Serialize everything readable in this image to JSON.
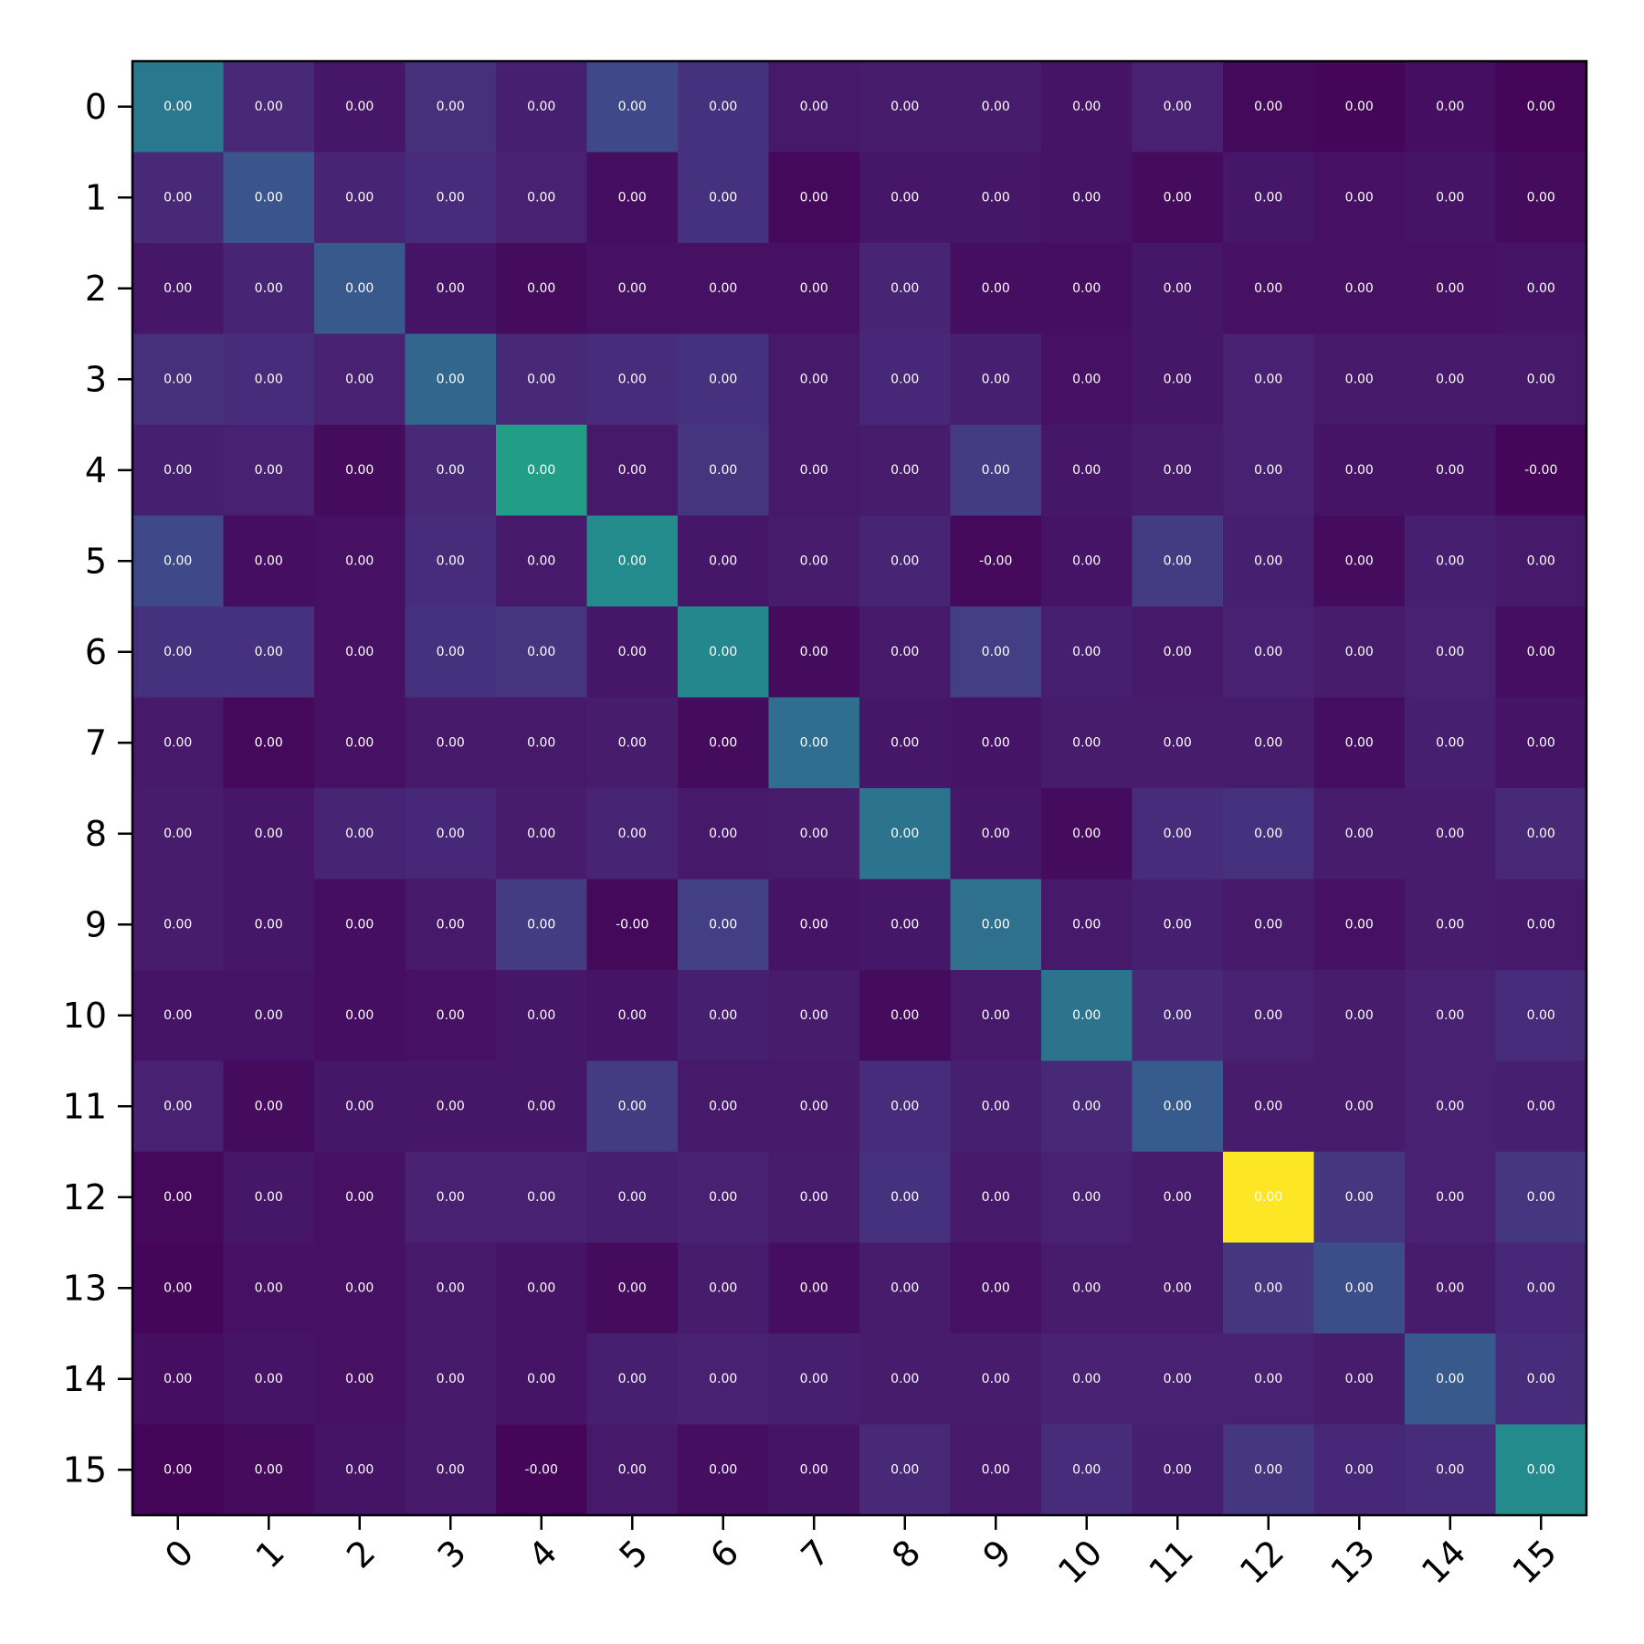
{
  "chart_data": {
    "type": "heatmap",
    "title": "",
    "xlabel": "",
    "ylabel": "",
    "x_ticks": [
      "0",
      "1",
      "2",
      "3",
      "4",
      "5",
      "6",
      "7",
      "8",
      "9",
      "10",
      "11",
      "12",
      "13",
      "14",
      "15"
    ],
    "y_ticks": [
      "0",
      "1",
      "2",
      "3",
      "4",
      "5",
      "6",
      "7",
      "8",
      "9",
      "10",
      "11",
      "12",
      "13",
      "14",
      "15"
    ],
    "colormap": "viridis",
    "color_intensity": [
      [
        0.5,
        0.15,
        0.08,
        0.17,
        0.11,
        0.27,
        0.18,
        0.09,
        0.1,
        0.1,
        0.07,
        0.12,
        0.03,
        0.02,
        0.05,
        0.01
      ],
      [
        0.15,
        0.33,
        0.13,
        0.16,
        0.12,
        0.05,
        0.18,
        0.03,
        0.08,
        0.08,
        0.07,
        0.04,
        0.08,
        0.06,
        0.07,
        0.04
      ],
      [
        0.08,
        0.13,
        0.35,
        0.07,
        0.04,
        0.06,
        0.06,
        0.06,
        0.13,
        0.05,
        0.05,
        0.08,
        0.06,
        0.06,
        0.06,
        0.07
      ],
      [
        0.17,
        0.16,
        0.12,
        0.42,
        0.15,
        0.16,
        0.18,
        0.09,
        0.14,
        0.11,
        0.06,
        0.08,
        0.12,
        0.09,
        0.09,
        0.09
      ],
      [
        0.11,
        0.12,
        0.04,
        0.15,
        0.7,
        0.09,
        0.19,
        0.09,
        0.1,
        0.22,
        0.08,
        0.1,
        0.12,
        0.07,
        0.07,
        0.02
      ],
      [
        0.27,
        0.05,
        0.06,
        0.16,
        0.09,
        0.6,
        0.08,
        0.1,
        0.13,
        0.03,
        0.07,
        0.22,
        0.11,
        0.04,
        0.11,
        0.09
      ],
      [
        0.18,
        0.18,
        0.06,
        0.18,
        0.19,
        0.08,
        0.58,
        0.04,
        0.09,
        0.23,
        0.11,
        0.09,
        0.12,
        0.1,
        0.12,
        0.05
      ],
      [
        0.09,
        0.03,
        0.06,
        0.09,
        0.09,
        0.1,
        0.04,
        0.45,
        0.08,
        0.07,
        0.1,
        0.1,
        0.1,
        0.05,
        0.11,
        0.07
      ],
      [
        0.1,
        0.08,
        0.13,
        0.14,
        0.1,
        0.13,
        0.09,
        0.1,
        0.48,
        0.08,
        0.04,
        0.16,
        0.18,
        0.1,
        0.1,
        0.15
      ],
      [
        0.1,
        0.08,
        0.05,
        0.09,
        0.22,
        0.03,
        0.23,
        0.07,
        0.08,
        0.46,
        0.09,
        0.11,
        0.09,
        0.06,
        0.1,
        0.09
      ],
      [
        0.07,
        0.07,
        0.05,
        0.06,
        0.08,
        0.07,
        0.11,
        0.1,
        0.04,
        0.09,
        0.48,
        0.15,
        0.12,
        0.1,
        0.12,
        0.16
      ],
      [
        0.12,
        0.04,
        0.08,
        0.08,
        0.08,
        0.22,
        0.09,
        0.09,
        0.16,
        0.11,
        0.15,
        0.36,
        0.1,
        0.1,
        0.12,
        0.11
      ],
      [
        0.03,
        0.08,
        0.06,
        0.12,
        0.12,
        0.11,
        0.12,
        0.1,
        0.18,
        0.09,
        0.12,
        0.1,
        1.0,
        0.2,
        0.12,
        0.2
      ],
      [
        0.02,
        0.06,
        0.06,
        0.09,
        0.07,
        0.04,
        0.1,
        0.05,
        0.1,
        0.06,
        0.1,
        0.1,
        0.2,
        0.3,
        0.1,
        0.14
      ],
      [
        0.05,
        0.07,
        0.06,
        0.09,
        0.07,
        0.11,
        0.12,
        0.11,
        0.1,
        0.1,
        0.12,
        0.12,
        0.12,
        0.1,
        0.35,
        0.16
      ],
      [
        0.01,
        0.04,
        0.07,
        0.09,
        0.02,
        0.09,
        0.05,
        0.07,
        0.15,
        0.09,
        0.16,
        0.11,
        0.2,
        0.14,
        0.16,
        0.6
      ]
    ],
    "cell_labels": [
      [
        "0.00",
        "0.00",
        "0.00",
        "0.00",
        "0.00",
        "0.00",
        "0.00",
        "0.00",
        "0.00",
        "0.00",
        "0.00",
        "0.00",
        "0.00",
        "0.00",
        "0.00",
        "0.00"
      ],
      [
        "0.00",
        "0.00",
        "0.00",
        "0.00",
        "0.00",
        "0.00",
        "0.00",
        "0.00",
        "0.00",
        "0.00",
        "0.00",
        "0.00",
        "0.00",
        "0.00",
        "0.00",
        "0.00"
      ],
      [
        "0.00",
        "0.00",
        "0.00",
        "0.00",
        "0.00",
        "0.00",
        "0.00",
        "0.00",
        "0.00",
        "0.00",
        "0.00",
        "0.00",
        "0.00",
        "0.00",
        "0.00",
        "0.00"
      ],
      [
        "0.00",
        "0.00",
        "0.00",
        "0.00",
        "0.00",
        "0.00",
        "0.00",
        "0.00",
        "0.00",
        "0.00",
        "0.00",
        "0.00",
        "0.00",
        "0.00",
        "0.00",
        "0.00"
      ],
      [
        "0.00",
        "0.00",
        "0.00",
        "0.00",
        "0.00",
        "0.00",
        "0.00",
        "0.00",
        "0.00",
        "0.00",
        "0.00",
        "0.00",
        "0.00",
        "0.00",
        "0.00",
        "-0.00"
      ],
      [
        "0.00",
        "0.00",
        "0.00",
        "0.00",
        "0.00",
        "0.00",
        "0.00",
        "0.00",
        "0.00",
        "-0.00",
        "0.00",
        "0.00",
        "0.00",
        "0.00",
        "0.00",
        "0.00"
      ],
      [
        "0.00",
        "0.00",
        "0.00",
        "0.00",
        "0.00",
        "0.00",
        "0.00",
        "0.00",
        "0.00",
        "0.00",
        "0.00",
        "0.00",
        "0.00",
        "0.00",
        "0.00",
        "0.00"
      ],
      [
        "0.00",
        "0.00",
        "0.00",
        "0.00",
        "0.00",
        "0.00",
        "0.00",
        "0.00",
        "0.00",
        "0.00",
        "0.00",
        "0.00",
        "0.00",
        "0.00",
        "0.00",
        "0.00"
      ],
      [
        "0.00",
        "0.00",
        "0.00",
        "0.00",
        "0.00",
        "0.00",
        "0.00",
        "0.00",
        "0.00",
        "0.00",
        "0.00",
        "0.00",
        "0.00",
        "0.00",
        "0.00",
        "0.00"
      ],
      [
        "0.00",
        "0.00",
        "0.00",
        "0.00",
        "0.00",
        "-0.00",
        "0.00",
        "0.00",
        "0.00",
        "0.00",
        "0.00",
        "0.00",
        "0.00",
        "0.00",
        "0.00",
        "0.00"
      ],
      [
        "0.00",
        "0.00",
        "0.00",
        "0.00",
        "0.00",
        "0.00",
        "0.00",
        "0.00",
        "0.00",
        "0.00",
        "0.00",
        "0.00",
        "0.00",
        "0.00",
        "0.00",
        "0.00"
      ],
      [
        "0.00",
        "0.00",
        "0.00",
        "0.00",
        "0.00",
        "0.00",
        "0.00",
        "0.00",
        "0.00",
        "0.00",
        "0.00",
        "0.00",
        "0.00",
        "0.00",
        "0.00",
        "0.00"
      ],
      [
        "0.00",
        "0.00",
        "0.00",
        "0.00",
        "0.00",
        "0.00",
        "0.00",
        "0.00",
        "0.00",
        "0.00",
        "0.00",
        "0.00",
        "0.00",
        "0.00",
        "0.00",
        "0.00"
      ],
      [
        "0.00",
        "0.00",
        "0.00",
        "0.00",
        "0.00",
        "0.00",
        "0.00",
        "0.00",
        "0.00",
        "0.00",
        "0.00",
        "0.00",
        "0.00",
        "0.00",
        "0.00",
        "0.00"
      ],
      [
        "0.00",
        "0.00",
        "0.00",
        "0.00",
        "0.00",
        "0.00",
        "0.00",
        "0.00",
        "0.00",
        "0.00",
        "0.00",
        "0.00",
        "0.00",
        "0.00",
        "0.00",
        "0.00"
      ],
      [
        "0.00",
        "0.00",
        "0.00",
        "0.00",
        "-0.00",
        "0.00",
        "0.00",
        "0.00",
        "0.00",
        "0.00",
        "0.00",
        "0.00",
        "0.00",
        "0.00",
        "0.00",
        "0.00"
      ]
    ],
    "grid": false,
    "legend": "none"
  }
}
